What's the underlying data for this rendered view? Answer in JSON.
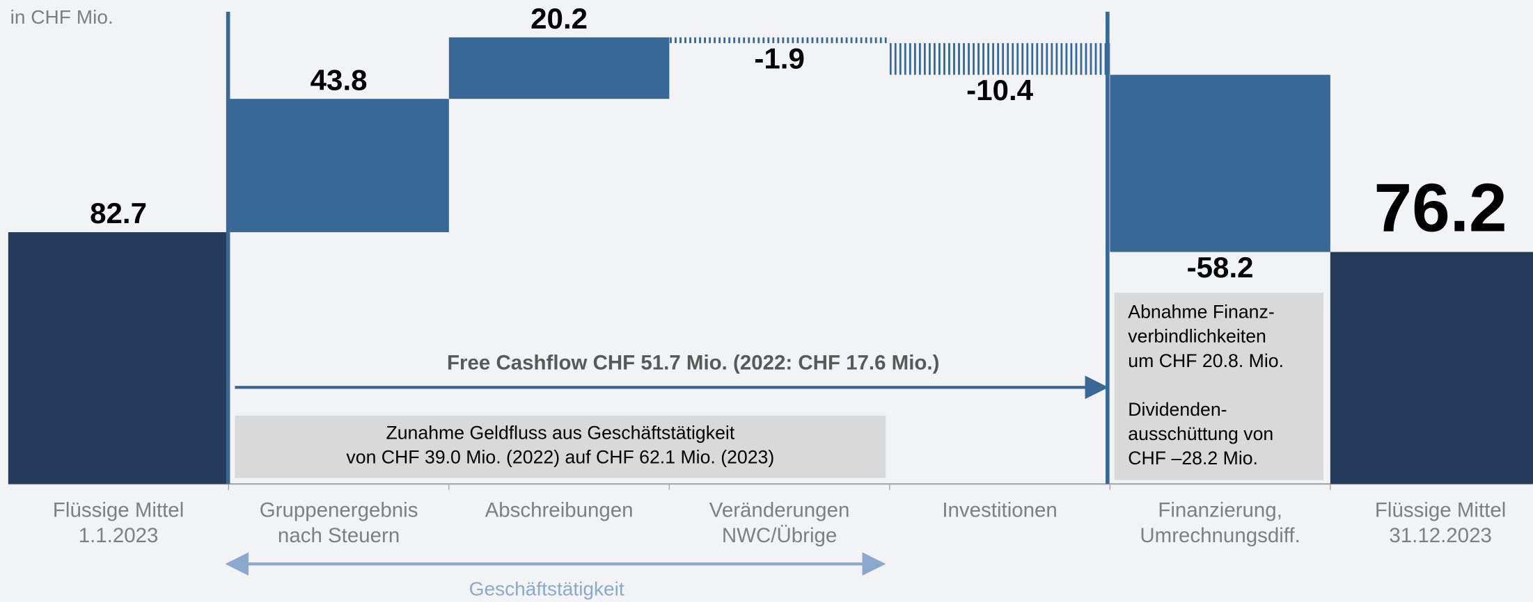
{
  "chart_data": {
    "type": "waterfall",
    "unit_note": "in CHF Mio.",
    "categories": [
      "Flüssige Mittel\n1.1.2023",
      "Gruppenergebnis\nnach Steuern",
      "Abschreibungen",
      "Veränderungen\nNWC/Übrige",
      "Investitionen",
      "Finanzierung,\nUmrechnungsdiff.",
      "Flüssige Mittel\n31.12.2023"
    ],
    "values": [
      82.7,
      43.8,
      20.2,
      -1.9,
      -10.4,
      -58.2,
      76.2
    ],
    "measure": [
      "absolute",
      "relative",
      "relative",
      "relative",
      "relative",
      "relative",
      "total"
    ],
    "colors": [
      "#243b5a",
      "#386895",
      "#386895",
      "#386895",
      "#386895",
      "#386895",
      "#243b5a"
    ],
    "hatched": [
      false,
      false,
      false,
      true,
      true,
      false,
      false
    ],
    "ylim": [
      0,
      155
    ],
    "free_cashflow": "Free Cashflow CHF 51.7 Mio. (2022: CHF 17.6 Mio.)",
    "box_left": [
      "Zunahme Geldfluss aus Geschäftstätigkeit",
      "von CHF 39.0 Mio. (2022) auf CHF 62.1 Mio. (2023)"
    ],
    "box_right": [
      [
        "Abnahme Finanz-",
        "verbindlichkeiten",
        "um CHF 20.8. Mio."
      ],
      [
        "Dividenden-",
        "ausschüttung von",
        "CHF –28.2 Mio."
      ]
    ],
    "group_label": "Geschäftstätigkeit"
  }
}
